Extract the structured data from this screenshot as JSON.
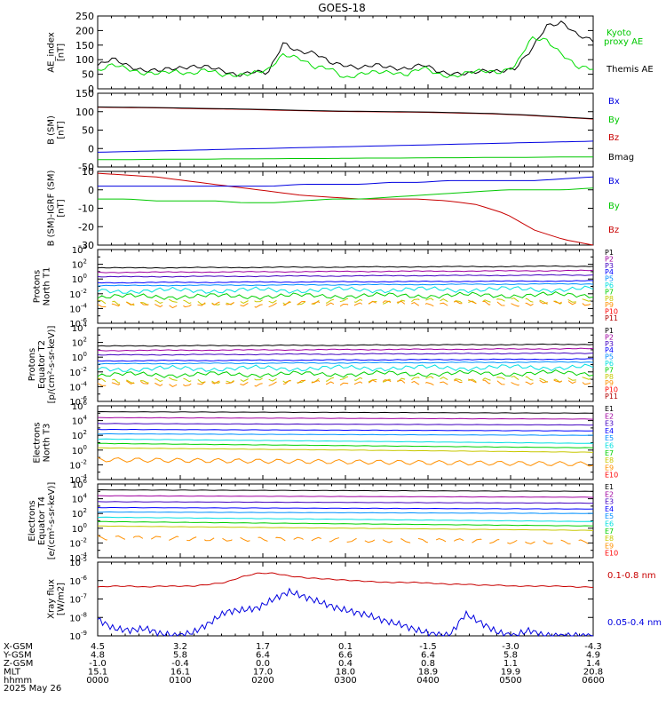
{
  "title": "GOES-18",
  "colors": {
    "black": "#000000",
    "green": "#00c800",
    "red": "#c80000",
    "blue": "#0000e0",
    "bright_green": "#00dd00",
    "rainbow": [
      "#000000",
      "#a000a0",
      "#4000c0",
      "#0000ff",
      "#0090ff",
      "#00e0e0",
      "#00d000",
      "#c8c800",
      "#ff9000",
      "#ff0000",
      "#b00000"
    ]
  },
  "chart_data": [
    {
      "type": "line",
      "ylabel": "AE_index\n[nT]",
      "ylim": [
        0,
        250
      ],
      "ticks": [
        "0",
        "50",
        "100",
        "150",
        "200",
        "250"
      ],
      "legend": [
        "Kyoto\nproxy AE",
        "Themis AE"
      ],
      "series": [
        {
          "name": "Themis AE",
          "color": "#000000",
          "values": [
            80,
            100,
            80,
            65,
            60,
            70,
            80,
            75,
            60,
            50,
            60,
            50,
            160,
            130,
            120,
            90,
            85,
            70,
            80,
            75,
            70,
            80,
            60,
            55,
            50,
            60,
            65,
            70,
            130,
            220,
            230,
            180,
            165
          ]
        },
        {
          "name": "Kyoto proxy AE",
          "color": "#00dd00",
          "values": [
            60,
            80,
            70,
            55,
            50,
            60,
            55,
            65,
            45,
            50,
            55,
            60,
            120,
            110,
            70,
            70,
            40,
            50,
            55,
            60,
            50,
            70,
            50,
            45,
            55,
            60,
            60,
            80,
            170,
            170,
            120,
            70,
            70
          ]
        }
      ]
    },
    {
      "type": "line",
      "ylabel": "B (SM)\n[nT]",
      "ylim": [
        -50,
        150
      ],
      "ticks": [
        "-50",
        "0",
        "50",
        "100",
        "150"
      ],
      "legend": [
        "Bx",
        "By",
        "Bz",
        "Bmag"
      ],
      "series": [
        {
          "name": "Bz",
          "color": "#c80000",
          "values": [
            112,
            111,
            110,
            108,
            107,
            105,
            103,
            101,
            100,
            99,
            98,
            96,
            94,
            90,
            85,
            80
          ]
        },
        {
          "name": "Bmag",
          "color": "#000000",
          "values": [
            113,
            112,
            111,
            109,
            108,
            106,
            104,
            102,
            101,
            100,
            99,
            97,
            95,
            91,
            86,
            81
          ]
        },
        {
          "name": "Bx",
          "color": "#0000e0",
          "values": [
            -10,
            -8,
            -6,
            -4,
            -2,
            0,
            2,
            4,
            6,
            8,
            10,
            12,
            14,
            16,
            18,
            20
          ]
        },
        {
          "name": "By",
          "color": "#00c800",
          "values": [
            -30,
            -30,
            -29,
            -29,
            -28,
            -28,
            -27,
            -27,
            -26,
            -26,
            -25,
            -25,
            -24,
            -24,
            -23,
            -23
          ]
        }
      ]
    },
    {
      "type": "line",
      "ylabel": "B (SM)-IGRF (SM)\n[nT]",
      "ylim": [
        -30,
        10
      ],
      "ticks": [
        "-30",
        "-20",
        "-10",
        "0",
        "10"
      ],
      "legend": [
        "Bx",
        "By",
        "Bz"
      ],
      "series": [
        {
          "name": "Bz",
          "color": "#c80000",
          "values": [
            9,
            8,
            7,
            5,
            3,
            1,
            -1,
            -3,
            -4,
            -5,
            -5,
            -5,
            -6,
            -8,
            -13,
            -22,
            -27,
            -30
          ]
        },
        {
          "name": "Bx",
          "color": "#0000e0",
          "values": [
            2,
            2,
            2,
            2,
            2,
            2,
            2,
            3,
            3,
            3,
            4,
            4,
            5,
            5,
            5,
            5,
            6,
            7
          ]
        },
        {
          "name": "By",
          "color": "#00c800",
          "values": [
            -5,
            -5,
            -6,
            -6,
            -6,
            -7,
            -7,
            -6,
            -5,
            -5,
            -4,
            -3,
            -2,
            -1,
            0,
            0,
            0,
            1
          ]
        }
      ]
    },
    {
      "type": "line",
      "ylabel": "Protons\nNorth T1",
      "log": true,
      "ylim_exp": [
        -6,
        4
      ],
      "legend": [
        "P1",
        "P2",
        "P3",
        "P4",
        "P5",
        "P6",
        "P7",
        "P8",
        "P9",
        "P10",
        "P11"
      ],
      "levels": [
        1.5,
        0.9,
        0.3,
        -0.5,
        -0.9,
        -1.6,
        -2.4,
        -3.2,
        -3.5,
        -5,
        -5
      ]
    },
    {
      "type": "line",
      "ylabel": "Protons\nEquator T2\n[p/(cm²-s-sr-keV)]",
      "log": true,
      "ylim_exp": [
        -6,
        4
      ],
      "legend": [
        "P1",
        "P2",
        "P3",
        "P4",
        "P5",
        "P6",
        "P7",
        "P8",
        "P9",
        "P10",
        "P11"
      ],
      "levels": [
        1.5,
        0.9,
        0.3,
        -0.5,
        -0.9,
        -1.6,
        -2.4,
        -3.2,
        -3.6,
        -5,
        -5
      ]
    },
    {
      "type": "line",
      "ylabel": "Electrons\nNorth T3",
      "log": true,
      "ylim_exp": [
        -4,
        6
      ],
      "legend": [
        "E1",
        "E2",
        "E3",
        "E4",
        "E5",
        "E6",
        "E7",
        "E8",
        "E9",
        "E10"
      ],
      "levels": [
        5.2,
        4.4,
        3.6,
        2.8,
        2.2,
        1.5,
        0.9,
        0.3,
        -1.3,
        -3
      ]
    },
    {
      "type": "line",
      "ylabel": "Electrons\nEquator T4\n[e/(cm²-s-sr-keV)]",
      "log": true,
      "ylim_exp": [
        -4,
        6
      ],
      "legend": [
        "E1",
        "E2",
        "E3",
        "E4",
        "E5",
        "E6",
        "E7",
        "E8",
        "E9",
        "E10"
      ],
      "levels": [
        5.2,
        4.4,
        3.6,
        2.8,
        2.2,
        1.5,
        0.9,
        0.3,
        -1.3,
        -3
      ]
    },
    {
      "type": "line",
      "ylabel": "Xray flux\n[W/m2]",
      "log": true,
      "ylim_exp": [
        -9,
        -5
      ],
      "legend": [
        "0.1-0.8 nm",
        "0.05-0.4 nm"
      ],
      "series": [
        {
          "name": "0.1-0.8 nm",
          "color": "#c80000",
          "values": [
            -6.35,
            -6.3,
            -6.3,
            -6.35,
            -6.3,
            -6.3,
            -6.3,
            -6.2,
            -6.1,
            -5.8,
            -5.6,
            -5.6,
            -5.75,
            -5.85,
            -5.9,
            -5.95,
            -6.0,
            -6.05,
            -6.1,
            -6.1,
            -6.1,
            -6.15,
            -6.2,
            -6.2,
            -6.25,
            -6.25,
            -6.3,
            -6.3,
            -6.3,
            -6.3,
            -6.35,
            -6.35
          ]
        },
        {
          "name": "0.05-0.4 nm",
          "color": "#0000e0",
          "values": [
            -8.1,
            -8.6,
            -8.7,
            -8.6,
            -8.9,
            -9.0,
            -8.8,
            -8.3,
            -7.7,
            -7.6,
            -7.5,
            -7.0,
            -6.6,
            -6.9,
            -7.2,
            -7.5,
            -7.7,
            -7.9,
            -8.2,
            -8.4,
            -8.7,
            -8.9,
            -9.0,
            -7.8,
            -8.3,
            -8.8,
            -9.0,
            -8.7,
            -9.0,
            -9.0,
            -9.0,
            -9.0
          ]
        }
      ]
    }
  ],
  "footer": {
    "rows": [
      "X-GSM",
      "Y-GSM",
      "Z-GSM",
      "MLT",
      "hhmm"
    ],
    "date": "2025 May 26",
    "columns": [
      [
        "4.5",
        "4.8",
        "-1.0",
        "15.1",
        "0000"
      ],
      [
        "3.2",
        "5.8",
        "-0.4",
        "16.1",
        "0100"
      ],
      [
        "1.7",
        "6.4",
        "0.0",
        "17.0",
        "0200"
      ],
      [
        "0.1",
        "6.6",
        "0.4",
        "18.0",
        "0300"
      ],
      [
        "-1.5",
        "6.4",
        "0.8",
        "18.9",
        "0400"
      ],
      [
        "-3.0",
        "5.8",
        "1.1",
        "19.9",
        "0500"
      ],
      [
        "-4.3",
        "4.9",
        "1.4",
        "20.8",
        "0600"
      ]
    ]
  }
}
